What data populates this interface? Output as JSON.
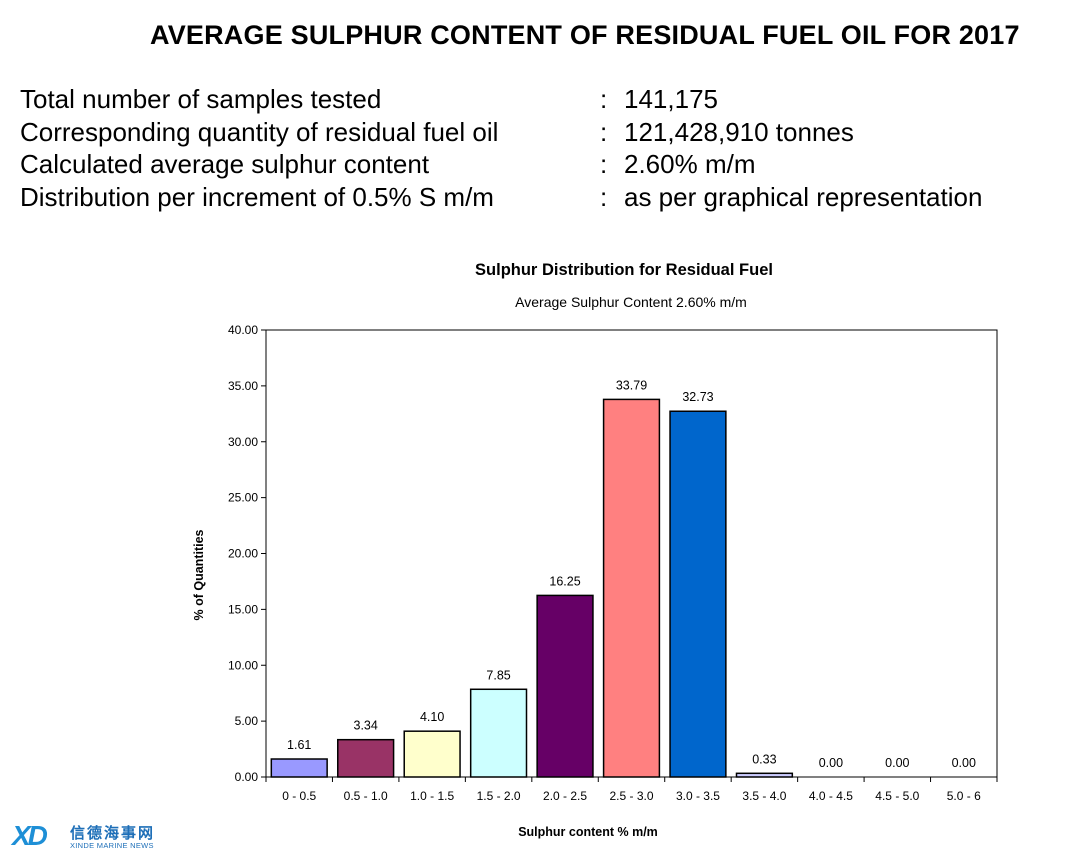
{
  "page_title": "AVERAGE SULPHUR CONTENT OF RESIDUAL FUEL OIL FOR 2017",
  "info_rows": [
    {
      "label": "Total number of samples tested",
      "value": "141,175"
    },
    {
      "label": "Corresponding quantity of residual fuel oil",
      "value": "121,428,910 tonnes"
    },
    {
      "label": "Calculated average sulphur content",
      "value": "2.60% m/m"
    },
    {
      "label": "Distribution per increment of 0.5% S m/m",
      "value": "as per graphical representation"
    }
  ],
  "info_separator": ":",
  "chart_data": {
    "type": "bar",
    "title": "Sulphur Distribution for Residual Fuel",
    "subtitle": "Average Sulphur Content 2.60% m/m",
    "xlabel": "Sulphur content % m/m",
    "ylabel": "% of Quantities",
    "categories": [
      "0 - 0.5",
      "0.5 - 1.0",
      "1.0 - 1.5",
      "1.5 - 2.0",
      "2.0 - 2.5",
      "2.5 - 3.0",
      "3.0 - 3.5",
      "3.5 - 4.0",
      "4.0 - 4.5",
      "4.5 - 5.0",
      "5.0 - 6"
    ],
    "values": [
      1.61,
      3.34,
      4.1,
      7.85,
      16.25,
      33.79,
      32.73,
      0.33,
      0.0,
      0.0,
      0.0
    ],
    "value_labels": [
      "1.61",
      "3.34",
      "4.10",
      "7.85",
      "16.25",
      "33.79",
      "32.73",
      "0.33",
      "0.00",
      "0.00",
      "0.00"
    ],
    "bar_colors": [
      "#9999ff",
      "#993366",
      "#ffffcc",
      "#ccffff",
      "#660066",
      "#ff8080",
      "#0066cc",
      "#ccccff",
      "#000080",
      "#ff00ff",
      "#ffff00"
    ],
    "yticks": [
      "0.00",
      "5.00",
      "10.00",
      "15.00",
      "20.00",
      "25.00",
      "30.00",
      "35.00",
      "40.00"
    ],
    "ylim": [
      0,
      40
    ],
    "grid": false,
    "legend": "none"
  },
  "logo": {
    "mark": "XD",
    "name_cn": "信德海事网",
    "name_en": "XINDE MARINE NEWS"
  }
}
